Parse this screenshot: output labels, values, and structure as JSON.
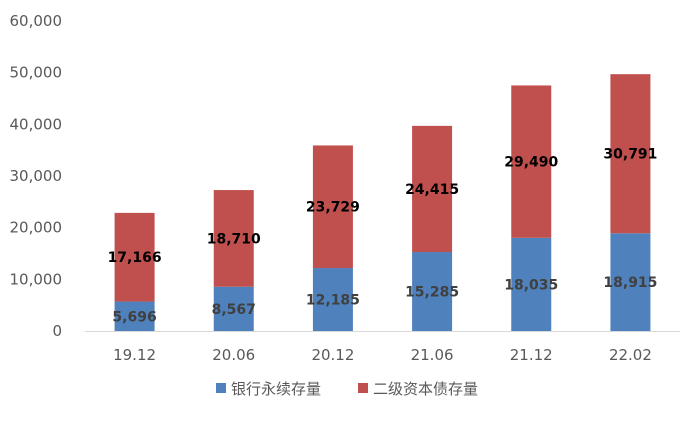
{
  "chart_data": {
    "type": "bar",
    "stacked": true,
    "categories": [
      "19.12",
      "20.06",
      "20.12",
      "21.06",
      "21.12",
      "22.02"
    ],
    "series": [
      {
        "name": "银行永续存量",
        "color": "#4f81bd",
        "values": [
          5696,
          8567,
          12185,
          15285,
          18035,
          18915
        ],
        "labels": [
          "5,696",
          "8,567",
          "12,185",
          "15,285",
          "18,035",
          "18,915"
        ]
      },
      {
        "name": "二级资本债存量",
        "color": "#c0504d",
        "values": [
          17166,
          18710,
          23729,
          24415,
          29490,
          30791
        ],
        "labels": [
          "17,166",
          "18,710",
          "23,729",
          "24,415",
          "29,490",
          "30,791"
        ]
      }
    ],
    "y_ticks": [
      "0",
      "10,000",
      "20,000",
      "30,000",
      "40,000",
      "50,000",
      "60,000"
    ],
    "ylim": [
      0,
      60000
    ],
    "grid": false,
    "legend_position": "bottom"
  }
}
